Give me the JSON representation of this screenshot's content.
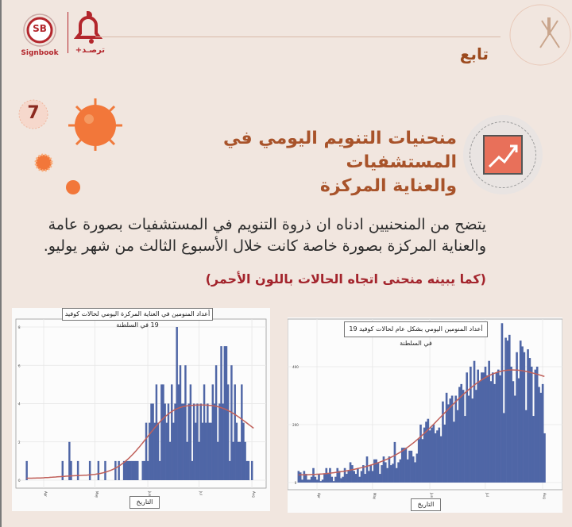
{
  "header": {
    "signbook_logo": "SB",
    "signbook_label": "Signbook",
    "tarassud_label": "ترصـد+",
    "continued_label": "تابع"
  },
  "section": {
    "number": "7",
    "title_line1": "منحنيات التنويم اليومي في المستشفيات",
    "title_line2": "والعناية المركزة",
    "body_line1": "يتضح من المنحنيين ادناه ان ذروة التنويم في المستشفيات بصورة عامة",
    "body_line2": "والعناية المركزة بصورة خاصة كانت خلال الأسبوع الثالث من شهر يوليو.",
    "note": "(كما يبينه منحنى اتجاه الحالات باللون الأحمر)"
  },
  "colors": {
    "bar": "#4f66a6",
    "trend": "#c0605a",
    "heading": "#a8532a",
    "note": "#a3242c"
  },
  "chart_data": [
    {
      "type": "bar",
      "title": "أعداد المنومين في العناية المركزة اليومي لحالات كوفيد 19 في السلطنة",
      "xlabel": "التاريخ",
      "ylabel": "",
      "x_start": "Mar 22",
      "x_end": "Aug 2",
      "x_interval": "daily",
      "x_ticks": [
        "Apr",
        "May",
        "Jun",
        "Jul",
        "Aug"
      ],
      "y_ticks": [
        0,
        2,
        4,
        6,
        8
      ],
      "ylim": [
        0,
        8.5
      ],
      "grid": true,
      "trend_line": "smoothed, red",
      "values": [
        1,
        0,
        0,
        0,
        0,
        0,
        0,
        0,
        0,
        0,
        0,
        0,
        0,
        0,
        0,
        0,
        0,
        0,
        0,
        0,
        0,
        1,
        0,
        0,
        0,
        2,
        1,
        0,
        0,
        0,
        1,
        0,
        0,
        0,
        0,
        0,
        0,
        1,
        0,
        0,
        0,
        0,
        1,
        0,
        0,
        0,
        1,
        0,
        0,
        0,
        0,
        0,
        1,
        0,
        1,
        0,
        0,
        1,
        1,
        1,
        1,
        1,
        1,
        1,
        1,
        1,
        0,
        0,
        1,
        1,
        3,
        1,
        3,
        4,
        4,
        3,
        5,
        3,
        1,
        5,
        5,
        4,
        3,
        4,
        2,
        5,
        3,
        4,
        8,
        5,
        6,
        4,
        4,
        6,
        2,
        4,
        5,
        1,
        4,
        3,
        4,
        2,
        4,
        3,
        5,
        3,
        4,
        3,
        3,
        5,
        4,
        6,
        2,
        4,
        7,
        4,
        7,
        7,
        5,
        1,
        6,
        2,
        5,
        3,
        2,
        2,
        5,
        3,
        2,
        1,
        1,
        0,
        1,
        0
      ]
    },
    {
      "type": "bar",
      "title": "أعداد المنومين اليومي بشكل عام لحالات كوفيد 19 في السلطنة",
      "xlabel": "التاريخ",
      "ylabel": "",
      "x_start": "Mar 22",
      "x_end": "Aug 2",
      "x_interval": "daily",
      "x_ticks": [
        "Apr",
        "May",
        "Jun",
        "Jul",
        "Aug"
      ],
      "y_ticks": [
        0,
        200,
        400
      ],
      "ylim": [
        0,
        570
      ],
      "grid": true,
      "trend_line": "smoothed, red",
      "values": [
        40,
        35,
        10,
        40,
        30,
        10,
        10,
        20,
        50,
        20,
        10,
        30,
        5,
        10,
        30,
        50,
        30,
        50,
        20,
        5,
        20,
        50,
        40,
        15,
        20,
        50,
        30,
        40,
        70,
        60,
        40,
        30,
        50,
        20,
        40,
        60,
        30,
        90,
        40,
        60,
        40,
        80,
        80,
        70,
        30,
        60,
        90,
        70,
        50,
        90,
        60,
        65,
        140,
        50,
        70,
        80,
        120,
        120,
        120,
        80,
        110,
        110,
        90,
        70,
        100,
        150,
        200,
        150,
        190,
        210,
        220,
        180,
        190,
        200,
        170,
        180,
        190,
        160,
        280,
        200,
        310,
        270,
        290,
        300,
        210,
        300,
        250,
        330,
        340,
        320,
        230,
        380,
        300,
        400,
        290,
        420,
        320,
        390,
        350,
        380,
        380,
        400,
        370,
        420,
        350,
        380,
        340,
        380,
        390,
        370,
        550,
        240,
        500,
        490,
        510,
        400,
        350,
        300,
        450,
        360,
        490,
        470,
        450,
        250,
        460,
        430,
        400,
        230,
        390,
        400,
        330,
        310,
        340,
        170
      ]
    }
  ]
}
